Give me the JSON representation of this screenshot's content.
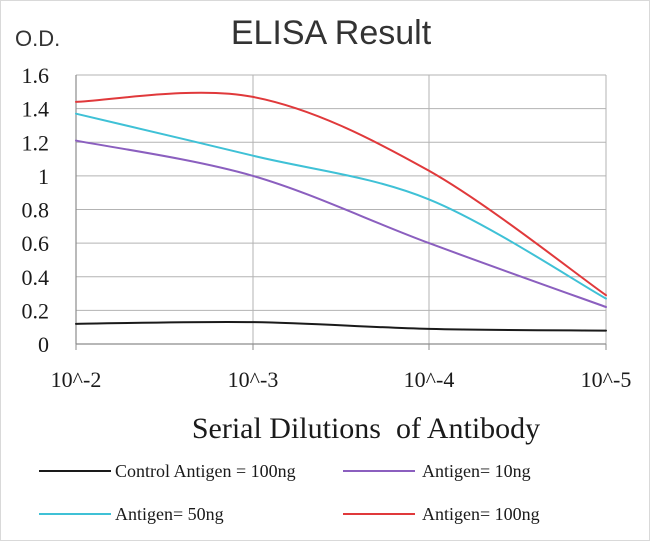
{
  "chart_data": {
    "type": "line",
    "title": "ELISA Result",
    "ylabel": "O.D.",
    "xlabel": "Serial Dilutions  of Antibody",
    "x_categories": [
      "10^-2",
      "10^-3",
      "10^-4",
      "10^-5"
    ],
    "ylim": [
      0,
      1.6
    ],
    "yticks": [
      "0",
      "0.2",
      "0.4",
      "0.6",
      "0.8",
      "1",
      "1.2",
      "1.4",
      "1.6"
    ],
    "grid": true,
    "legend_position": "bottom",
    "series": [
      {
        "name": "Control Antigen = 100ng",
        "color": "#1a1a1a",
        "values": [
          0.12,
          0.13,
          0.09,
          0.08
        ]
      },
      {
        "name": "Antigen= 10ng",
        "color": "#8b5fbf",
        "values": [
          1.21,
          1.0,
          0.6,
          0.22
        ]
      },
      {
        "name": "Antigen= 50ng",
        "color": "#3fc1d6",
        "values": [
          1.37,
          1.12,
          0.86,
          0.27
        ]
      },
      {
        "name": "Antigen= 100ng",
        "color": "#e0393b",
        "values": [
          1.44,
          1.47,
          1.03,
          0.29
        ]
      }
    ]
  }
}
